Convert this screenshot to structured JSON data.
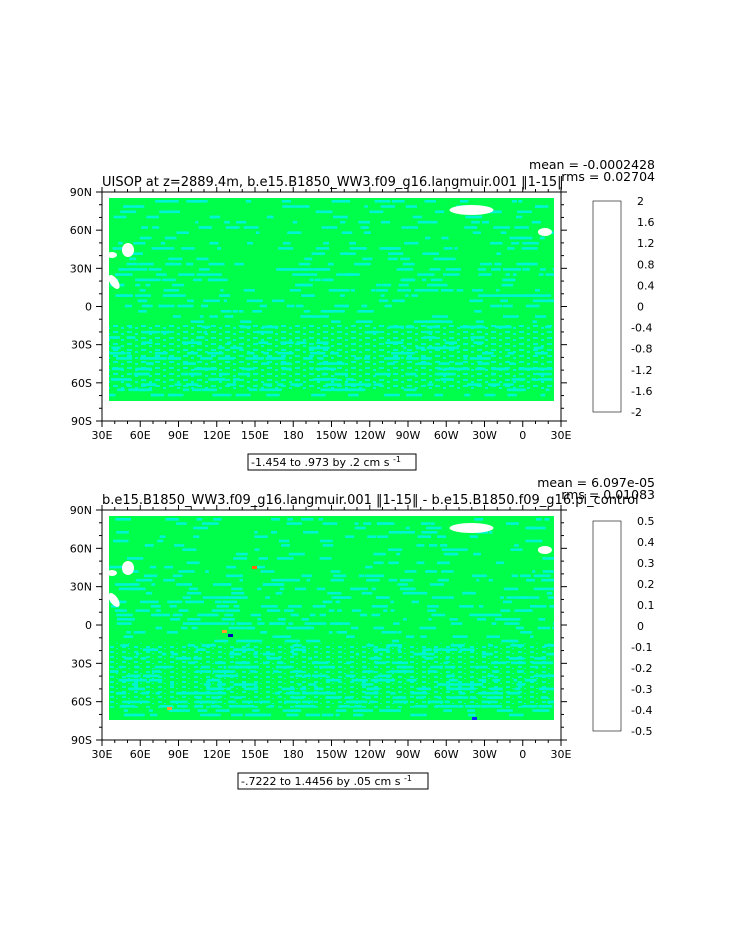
{
  "chart_data": [
    {
      "type": "heatmap",
      "title": "UISOP at z=2889.4m, b.e15.B1850_WW3.f09_g16.langmuir.001 ‖1-15‖",
      "stats": {
        "mean": "mean = -0.0002428",
        "rms": "rms = 0.02704"
      },
      "x_ticks": [
        "30E",
        "60E",
        "90E",
        "120E",
        "150E",
        "180",
        "150W",
        "120W",
        "90W",
        "60W",
        "30W",
        "0",
        "30E"
      ],
      "y_ticks": [
        "90N",
        "60N",
        "30N",
        "0",
        "30S",
        "60S",
        "90S"
      ],
      "contour_info": "-1.454 to .973 by .2 cm s",
      "contour_info_sup": "-1",
      "colorbar": {
        "labels": [
          "2",
          "1.6",
          "1.2",
          "0.8",
          "0.4",
          "0",
          "-0.4",
          "-0.8",
          "-1.2",
          "-1.6",
          "-2"
        ],
        "colors": [
          "#bb0000",
          "#dd0000",
          "#ff2a00",
          "#ff6a00",
          "#ff9e2a",
          "#ffc23c",
          "#ffe100",
          "#ffff00",
          "#b8ff00",
          "#00ff4a",
          "#00ffc8",
          "#00f0ff",
          "#00c8ff",
          "#0090ff",
          "#0030ff",
          "#0000c0",
          "#7a00d0",
          "#c000ff",
          "#ff00ff",
          "#d0d0d0",
          "#707070"
        ]
      }
    },
    {
      "type": "heatmap",
      "title": "b.e15.B1850_WW3.f09_g16.langmuir.001 ‖1-15‖ - b.e15.B1850.f09_g16.pi_control",
      "stats": {
        "mean": "mean = 6.097e-05",
        "rms": "rms = 0.01083"
      },
      "x_ticks": [
        "30E",
        "60E",
        "90E",
        "120E",
        "150E",
        "180",
        "150W",
        "120W",
        "90W",
        "60W",
        "30W",
        "0",
        "30E"
      ],
      "y_ticks": [
        "90N",
        "60N",
        "30N",
        "0",
        "30S",
        "60S",
        "90S"
      ],
      "contour_info": "-.7222 to 1.4456 by .05 cm s",
      "contour_info_sup": "-1",
      "colorbar": {
        "labels": [
          "0.5",
          "0.4",
          "0.3",
          "0.2",
          "0.1",
          "0",
          "-0.1",
          "-0.2",
          "-0.3",
          "-0.4",
          "-0.5"
        ],
        "colors": [
          "#bb0000",
          "#dd0000",
          "#ff2a00",
          "#ff6a00",
          "#ff9e2a",
          "#ffc23c",
          "#ffe100",
          "#ffff00",
          "#b8ff00",
          "#00ff4a",
          "#00ffc8",
          "#00f0ff",
          "#00c8ff",
          "#0090ff",
          "#0030ff",
          "#0000c0",
          "#7a00d0",
          "#c000ff",
          "#ff00ff",
          "#d0d0d0",
          "#707070"
        ]
      }
    }
  ]
}
